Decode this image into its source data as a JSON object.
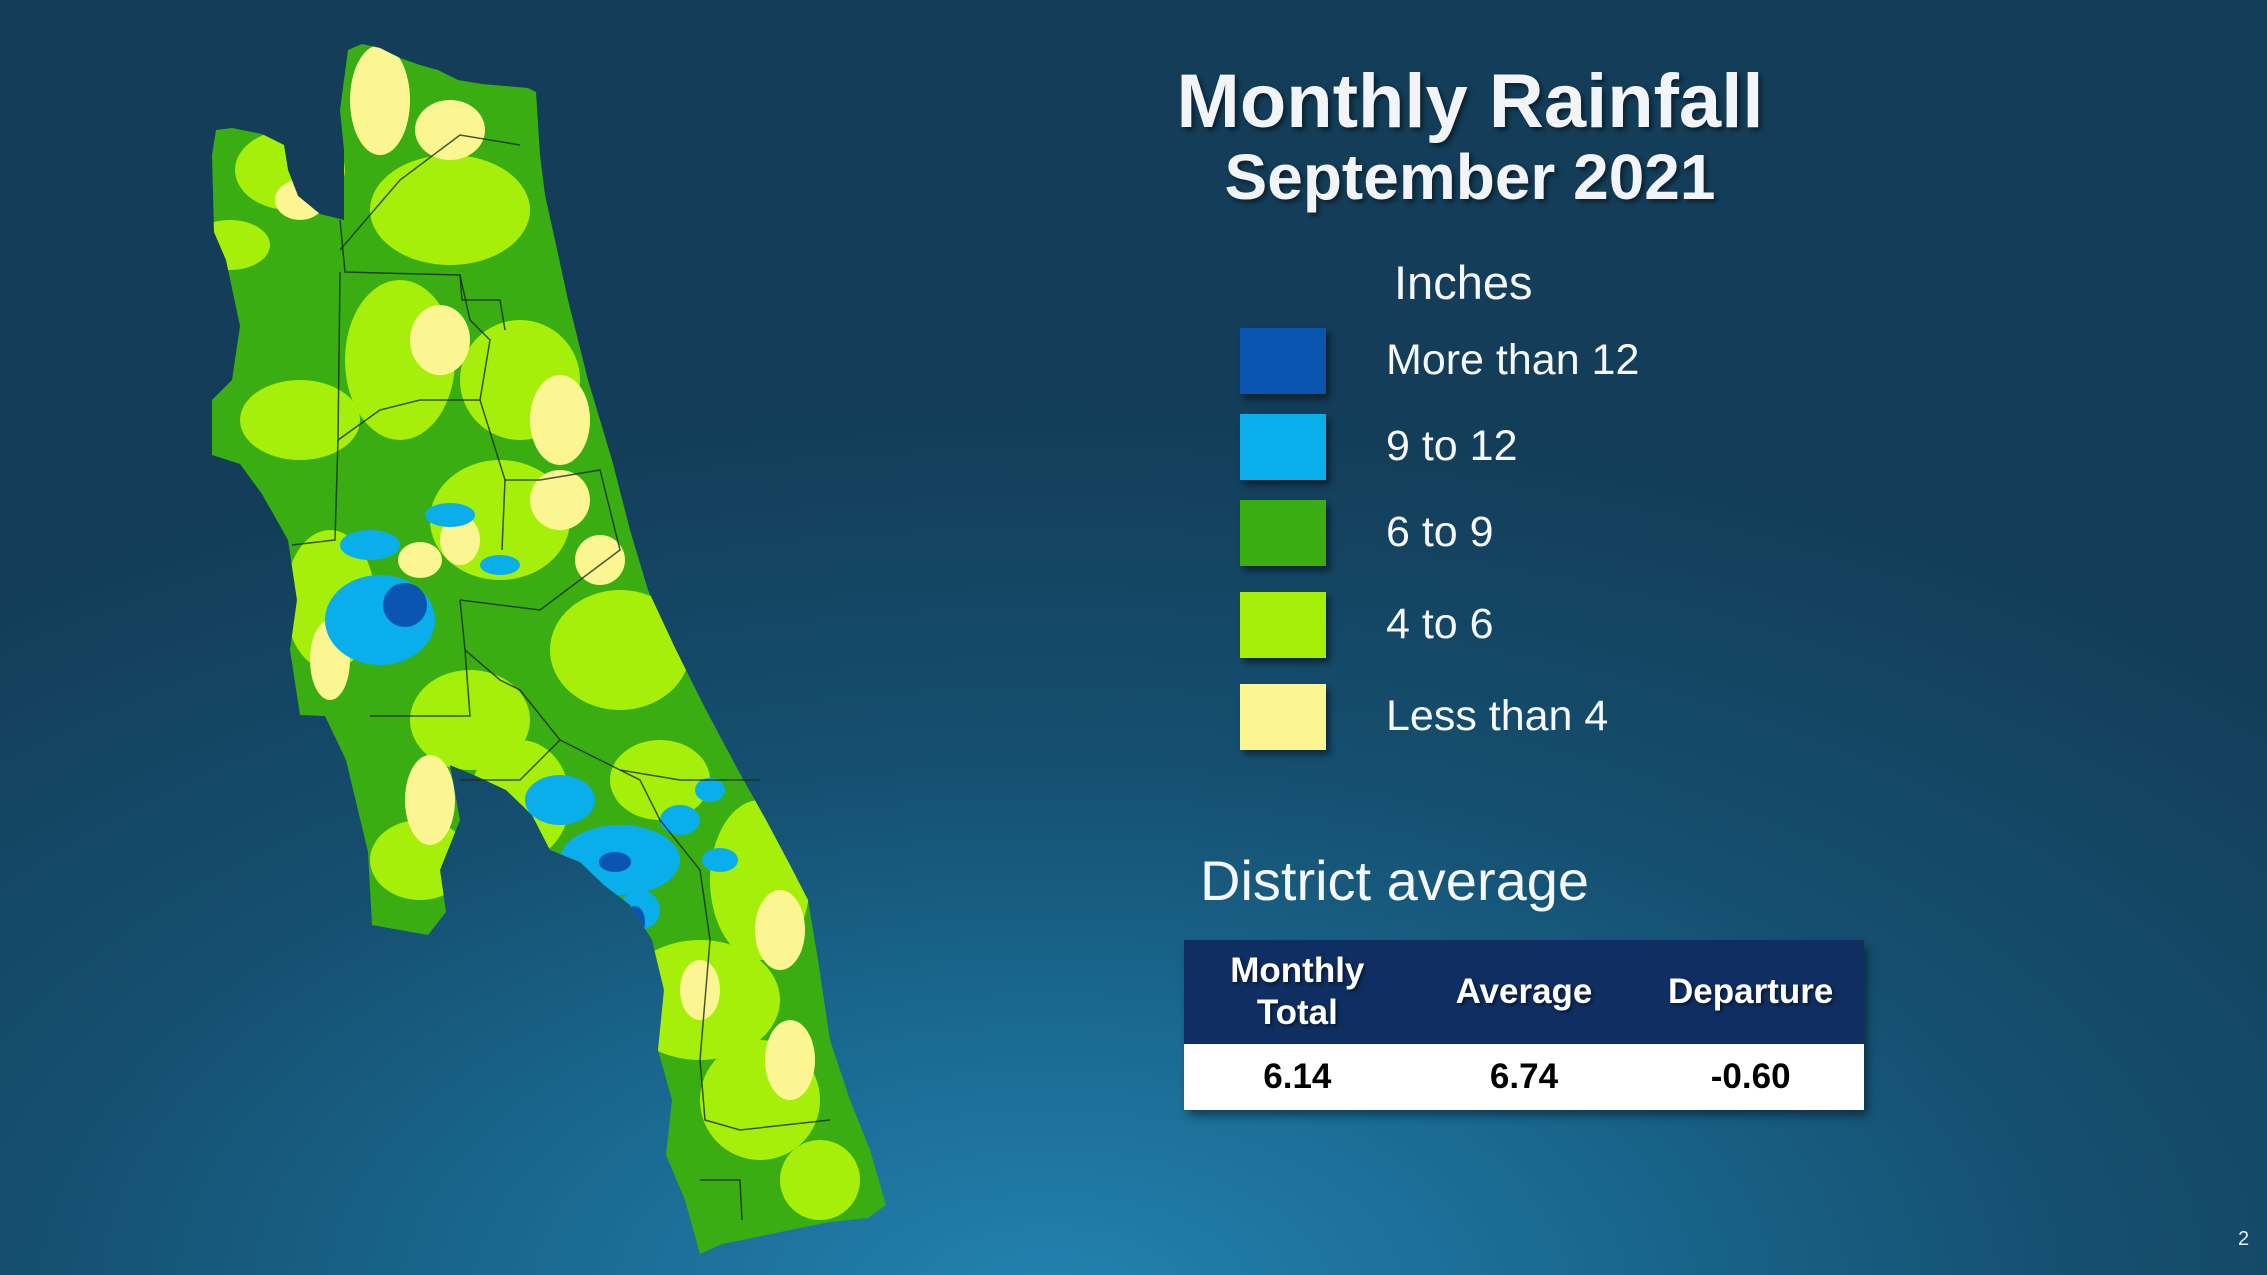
{
  "title": "Monthly Rainfall",
  "subtitle": "September 2021",
  "legend": {
    "title": "Inches",
    "items": [
      {
        "label": "More than 12",
        "color": "#0a55b0"
      },
      {
        "label": "9 to 12",
        "color": "#0aaeea"
      },
      {
        "label": "6 to 9",
        "color": "#3aad12"
      },
      {
        "label": "4 to 6",
        "color": "#a6ef0a"
      },
      {
        "label": "Less than 4",
        "color": "#fbf592"
      }
    ]
  },
  "district_average": {
    "heading": "District average",
    "columns": [
      "Monthly\nTotal",
      "Average",
      "Departure"
    ],
    "values": [
      "6.14",
      "6.74",
      "-0.60"
    ]
  },
  "page_number": "2"
}
